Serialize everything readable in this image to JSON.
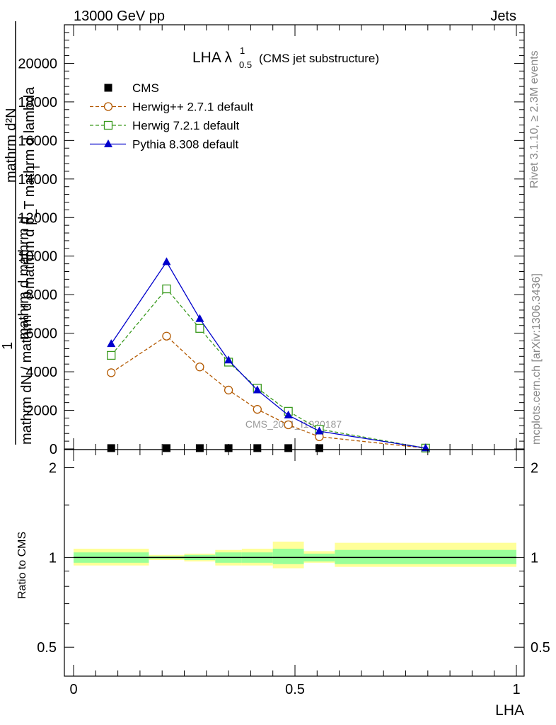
{
  "header": {
    "left": "13000 GeV pp",
    "right": "Jets"
  },
  "side_text": {
    "upper": "Rivet 3.1.10, ≥ 2.3M events",
    "lower": "mcplots.cern.ch [arXiv:1306.3436]"
  },
  "chart_data": [
    {
      "type": "line",
      "title_main": "LHA λ",
      "title_sup": "1",
      "title_sub": "0.5",
      "title_note": "(CMS jet substructure)",
      "ylabel_top": "mathrm d²N",
      "ylabel_mid": "mathrm d p_T mathrm d lambda",
      "ylabel_sub": "T",
      "ylabel_bottom": "mathrm dN / mathrm d p",
      "ylabel_frac_one": "1",
      "ylabel_lower": "mathrm d mathrm d",
      "watermark": "CMS_2021_I1920187",
      "xlim": [
        0,
        1
      ],
      "ylim": [
        0,
        22000
      ],
      "y_ticks": [
        0,
        2000,
        4000,
        6000,
        8000,
        10000,
        12000,
        14000,
        16000,
        18000,
        20000
      ],
      "y_tick_labels": [
        "0",
        "2000",
        "4000",
        "6000",
        "8000",
        "10000",
        "12000",
        "14000",
        "16000",
        "18000",
        "20000"
      ],
      "legend_position": "top-left",
      "series": [
        {
          "name": "CMS",
          "style": "data",
          "color": "#000000",
          "marker": "square-filled",
          "x": [
            0.085,
            0.21,
            0.285,
            0.35,
            0.415,
            0.485,
            0.555
          ],
          "y": [
            40,
            40,
            40,
            40,
            40,
            40,
            40
          ]
        },
        {
          "name": "Herwig++ 2.7.1 default",
          "style": "dashed",
          "color": "#b35900",
          "marker": "circle-open",
          "x": [
            0.085,
            0.21,
            0.285,
            0.35,
            0.415,
            0.485,
            0.555,
            0.795
          ],
          "y": [
            3950,
            5850,
            4250,
            3050,
            2050,
            1250,
            630,
            40
          ]
        },
        {
          "name": "Herwig 7.2.1 default",
          "style": "dashed",
          "color": "#3a9a1f",
          "marker": "square-open",
          "x": [
            0.085,
            0.21,
            0.285,
            0.35,
            0.415,
            0.485,
            0.555,
            0.795
          ],
          "y": [
            4850,
            8300,
            6250,
            4500,
            3150,
            1950,
            1020,
            40
          ]
        },
        {
          "name": "Pythia 8.308 default",
          "style": "solid",
          "color": "#0000cc",
          "marker": "triangle-filled",
          "x": [
            0.085,
            0.21,
            0.285,
            0.35,
            0.415,
            0.485,
            0.555,
            0.795
          ],
          "y": [
            5450,
            9700,
            6750,
            4600,
            3050,
            1750,
            920,
            40
          ]
        }
      ]
    },
    {
      "type": "area",
      "ylabel": "Ratio to CMS",
      "xlabel": "LHA",
      "xlim": [
        0,
        1
      ],
      "ylim": [
        0.4,
        2.3
      ],
      "scale": "log",
      "x_ticks": [
        0,
        0.5,
        1
      ],
      "x_tick_labels": [
        "0",
        "0.5",
        "1"
      ],
      "y_ticks": [
        0.5,
        1,
        2
      ],
      "y_tick_labels": [
        "0.5",
        "1",
        "2"
      ],
      "band_colors": {
        "outer": "#ffff99",
        "inner": "#99ff99"
      },
      "bins": [
        {
          "x0": 0.0,
          "x1": 0.17,
          "outer": [
            0.94,
            1.07
          ],
          "inner": [
            0.96,
            1.04
          ]
        },
        {
          "x0": 0.17,
          "x1": 0.25,
          "outer": [
            0.98,
            1.02
          ],
          "inner": [
            0.99,
            1.01
          ]
        },
        {
          "x0": 0.25,
          "x1": 0.32,
          "outer": [
            0.97,
            1.03
          ],
          "inner": [
            0.98,
            1.02
          ]
        },
        {
          "x0": 0.32,
          "x1": 0.38,
          "outer": [
            0.94,
            1.06
          ],
          "inner": [
            0.96,
            1.04
          ]
        },
        {
          "x0": 0.38,
          "x1": 0.45,
          "outer": [
            0.94,
            1.07
          ],
          "inner": [
            0.96,
            1.04
          ]
        },
        {
          "x0": 0.45,
          "x1": 0.52,
          "outer": [
            0.92,
            1.13
          ],
          "inner": [
            0.95,
            1.07
          ]
        },
        {
          "x0": 0.52,
          "x1": 0.59,
          "outer": [
            0.96,
            1.05
          ],
          "inner": [
            0.97,
            1.03
          ]
        },
        {
          "x0": 0.59,
          "x1": 1.0,
          "outer": [
            0.93,
            1.12
          ],
          "inner": [
            0.95,
            1.06
          ]
        }
      ]
    }
  ]
}
